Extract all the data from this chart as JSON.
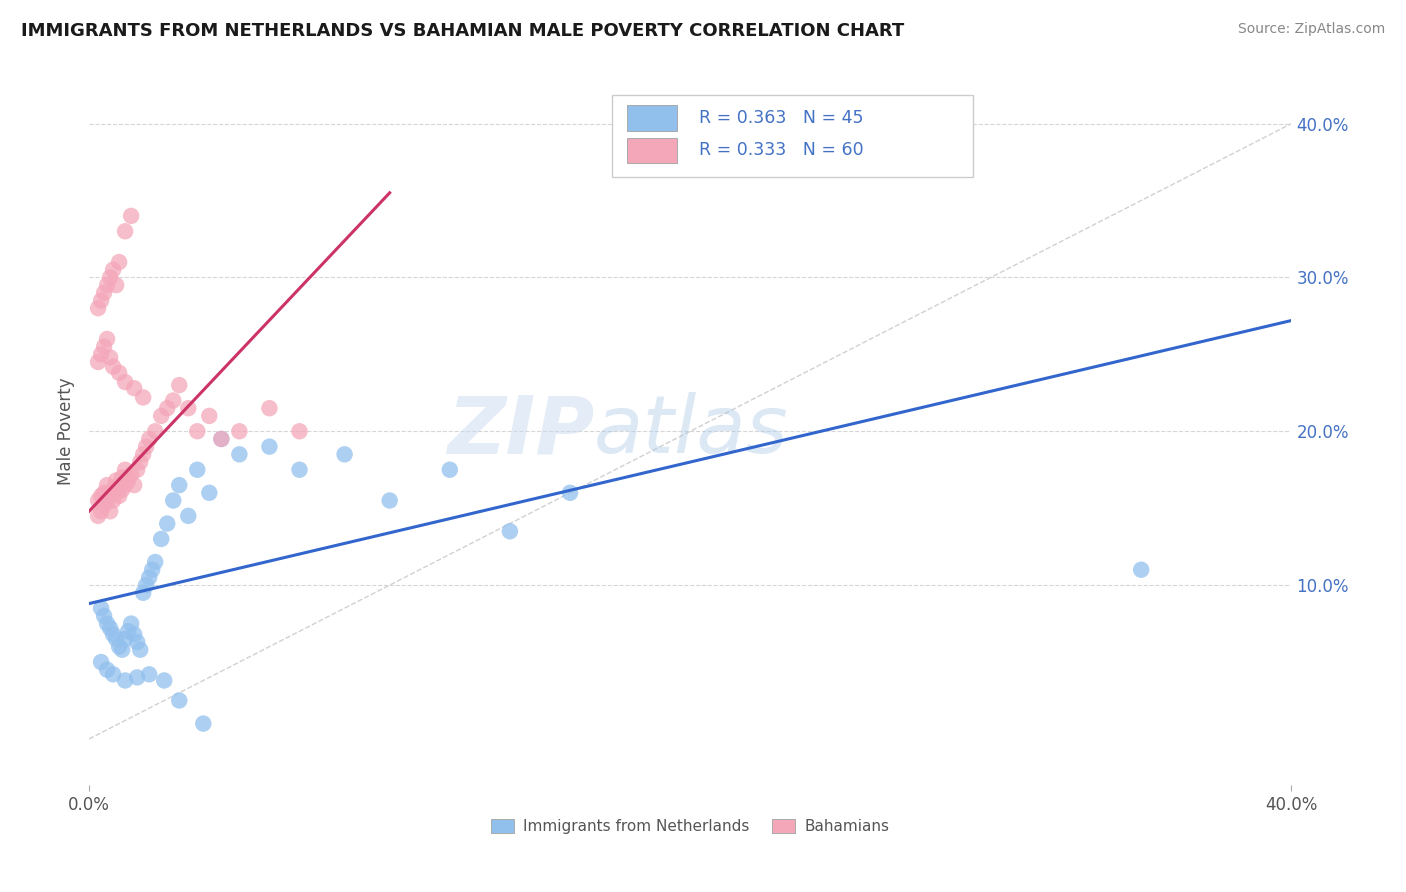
{
  "title": "IMMIGRANTS FROM NETHERLANDS VS BAHAMIAN MALE POVERTY CORRELATION CHART",
  "source": "Source: ZipAtlas.com",
  "ylabel": "Male Poverty",
  "right_ytick_vals": [
    0.1,
    0.2,
    0.3,
    0.4
  ],
  "xlim": [
    0.0,
    0.4
  ],
  "ylim": [
    -0.03,
    0.43
  ],
  "legend_blue_r": "R = 0.363",
  "legend_blue_n": "N = 45",
  "legend_pink_r": "R = 0.333",
  "legend_pink_n": "N = 60",
  "blue_color": "#92c0ed",
  "pink_color": "#f4a7b9",
  "blue_line_color": "#3366cc",
  "pink_line_color": "#cc3366",
  "legend_text_color": "#4472c4",
  "watermark_zip": "ZIP",
  "watermark_atlas": "atlas",
  "blue_line": {
    "x0": 0.0,
    "y0": 0.088,
    "x1": 0.4,
    "y1": 0.272
  },
  "pink_line": {
    "x0": 0.0,
    "y0": 0.148,
    "x1": 0.1,
    "y1": 0.355
  },
  "scatter_blue_x": [
    0.004,
    0.005,
    0.006,
    0.007,
    0.008,
    0.009,
    0.01,
    0.011,
    0.012,
    0.013,
    0.014,
    0.015,
    0.016,
    0.017,
    0.018,
    0.019,
    0.02,
    0.021,
    0.022,
    0.024,
    0.026,
    0.028,
    0.03,
    0.033,
    0.036,
    0.04,
    0.044,
    0.05,
    0.06,
    0.07,
    0.085,
    0.1,
    0.12,
    0.14,
    0.16,
    0.35,
    0.004,
    0.006,
    0.008,
    0.012,
    0.016,
    0.02,
    0.025,
    0.03,
    0.038
  ],
  "scatter_blue_y": [
    0.085,
    0.08,
    0.075,
    0.072,
    0.068,
    0.065,
    0.06,
    0.058,
    0.065,
    0.07,
    0.075,
    0.068,
    0.063,
    0.058,
    0.095,
    0.1,
    0.105,
    0.11,
    0.115,
    0.13,
    0.14,
    0.155,
    0.165,
    0.145,
    0.175,
    0.16,
    0.195,
    0.185,
    0.19,
    0.175,
    0.185,
    0.155,
    0.175,
    0.135,
    0.16,
    0.11,
    0.05,
    0.045,
    0.042,
    0.038,
    0.04,
    0.042,
    0.038,
    0.025,
    0.01
  ],
  "scatter_pink_x": [
    0.003,
    0.004,
    0.005,
    0.006,
    0.007,
    0.008,
    0.009,
    0.01,
    0.011,
    0.012,
    0.013,
    0.014,
    0.015,
    0.016,
    0.017,
    0.018,
    0.019,
    0.02,
    0.022,
    0.024,
    0.026,
    0.028,
    0.03,
    0.033,
    0.036,
    0.04,
    0.044,
    0.05,
    0.06,
    0.07,
    0.003,
    0.004,
    0.005,
    0.006,
    0.007,
    0.008,
    0.009,
    0.01,
    0.012,
    0.014,
    0.003,
    0.004,
    0.005,
    0.006,
    0.007,
    0.008,
    0.01,
    0.012,
    0.015,
    0.018,
    0.003,
    0.004,
    0.005,
    0.006,
    0.007,
    0.008,
    0.009,
    0.01,
    0.011,
    0.012
  ],
  "scatter_pink_y": [
    0.155,
    0.158,
    0.16,
    0.165,
    0.158,
    0.162,
    0.168,
    0.165,
    0.17,
    0.175,
    0.168,
    0.172,
    0.165,
    0.175,
    0.18,
    0.185,
    0.19,
    0.195,
    0.2,
    0.21,
    0.215,
    0.22,
    0.23,
    0.215,
    0.2,
    0.21,
    0.195,
    0.2,
    0.215,
    0.2,
    0.28,
    0.285,
    0.29,
    0.295,
    0.3,
    0.305,
    0.295,
    0.31,
    0.33,
    0.34,
    0.245,
    0.25,
    0.255,
    0.26,
    0.248,
    0.242,
    0.238,
    0.232,
    0.228,
    0.222,
    0.145,
    0.148,
    0.152,
    0.155,
    0.148,
    0.155,
    0.16,
    0.158,
    0.162,
    0.165
  ]
}
